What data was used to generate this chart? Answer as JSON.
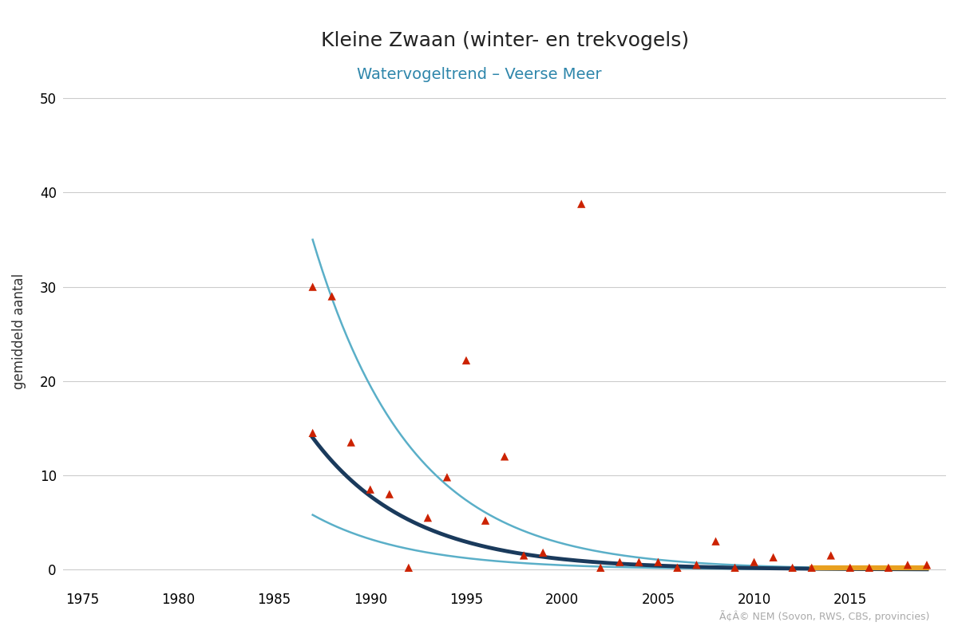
{
  "title": "Kleine Zwaan (winter- en trekvogels)",
  "subtitle": "Watervogeltrend – Veerse Meer",
  "xlabel": "",
  "ylabel": "gemiddeld aantal",
  "xlim": [
    1974,
    2020
  ],
  "ylim": [
    -1.5,
    52
  ],
  "yticks": [
    0,
    10,
    20,
    30,
    40,
    50
  ],
  "xticks": [
    1975,
    1980,
    1985,
    1990,
    1995,
    2000,
    2005,
    2010,
    2015
  ],
  "title_fontsize": 18,
  "subtitle_fontsize": 14,
  "subtitle_color": "#2e86ab",
  "ylabel_fontsize": 12,
  "background_color": "#ffffff",
  "grid_color": "#cccccc",
  "scatter_color": "#cc2200",
  "trend_line_color": "#1a3a5c",
  "ci_color": "#5aafc8",
  "orange_line_color": "#e8a020",
  "copyright_text": "Ã¢Â© NEM (Sovon, RWS, CBS, provincies)",
  "scatter_data": [
    [
      1987,
      14.5
    ],
    [
      1987,
      30.0
    ],
    [
      1988,
      29.0
    ],
    [
      1989,
      13.5
    ],
    [
      1990,
      8.5
    ],
    [
      1991,
      8.0
    ],
    [
      1992,
      0.2
    ],
    [
      1993,
      5.5
    ],
    [
      1994,
      9.8
    ],
    [
      1995,
      22.2
    ],
    [
      1996,
      5.2
    ],
    [
      1997,
      12.0
    ],
    [
      1998,
      1.5
    ],
    [
      1999,
      1.8
    ],
    [
      2001,
      38.8
    ],
    [
      2002,
      0.2
    ],
    [
      2003,
      0.8
    ],
    [
      2004,
      0.8
    ],
    [
      2005,
      0.8
    ],
    [
      2006,
      0.2
    ],
    [
      2007,
      0.5
    ],
    [
      2008,
      3.0
    ],
    [
      2009,
      0.2
    ],
    [
      2010,
      0.8
    ],
    [
      2011,
      1.3
    ],
    [
      2012,
      0.2
    ],
    [
      2013,
      0.2
    ],
    [
      2014,
      1.5
    ],
    [
      2015,
      0.2
    ],
    [
      2016,
      0.2
    ],
    [
      2017,
      0.2
    ],
    [
      2018,
      0.5
    ],
    [
      2019,
      0.5
    ]
  ],
  "trend_start_year": 1987,
  "trend_end_year": 2019,
  "orange_start_year": 2013,
  "orange_end_year": 2019,
  "trend_a": 14.0,
  "trend_b": -0.195,
  "ci_upper_a": 35.0,
  "ci_upper_b": -0.195,
  "ci_lower_a": 5.8,
  "ci_lower_b": -0.195
}
